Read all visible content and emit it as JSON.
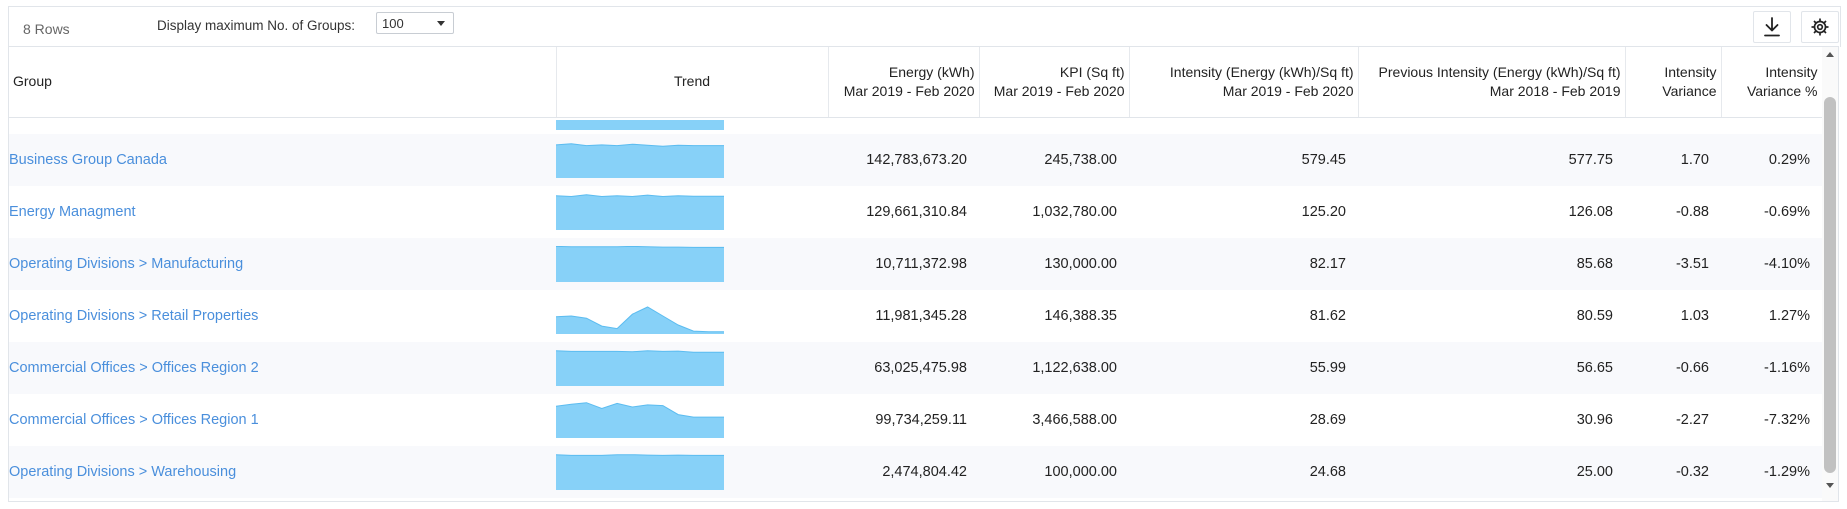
{
  "toolbar": {
    "rows_count": "8 Rows",
    "max_groups_label": "Display maximum No. of Groups:",
    "max_groups_value": "100",
    "download_icon": "download-icon",
    "settings_icon": "gear-icon"
  },
  "columns": {
    "group": "Group",
    "trend": "Trend",
    "energy": [
      "Energy (kWh)",
      "Mar 2019 - Feb 2020"
    ],
    "kpi": [
      "KPI (Sq ft)",
      "Mar 2019 - Feb 2020"
    ],
    "intensity": [
      "Intensity (Energy (kWh)/Sq ft)",
      "Mar 2019 - Feb 2020"
    ],
    "prev_intensity": [
      "Previous Intensity (Energy (kWh)/Sq ft)",
      "Mar 2018 - Feb 2019"
    ],
    "intensity_variance": [
      "Intensity",
      "Variance"
    ],
    "intensity_variance_pct": [
      "Intensity",
      "Variance %"
    ]
  },
  "rows": [
    {
      "group": "Business Group Canada",
      "energy": "142,783,673.20",
      "kpi": "245,738.00",
      "intensity": "579.45",
      "prev_intensity": "577.75",
      "variance": "1.70",
      "variance_pct": "0.29%",
      "trend": [
        0.92,
        0.95,
        0.9,
        0.92,
        0.9,
        0.94,
        0.91,
        0.88,
        0.91,
        0.9,
        0.9,
        0.9
      ]
    },
    {
      "group": "Energy Managment",
      "energy": "129,661,310.84",
      "kpi": "1,032,780.00",
      "intensity": "125.20",
      "prev_intensity": "126.08",
      "variance": "-0.88",
      "variance_pct": "-0.69%",
      "trend": [
        0.95,
        0.93,
        0.98,
        0.93,
        0.95,
        0.93,
        0.97,
        0.93,
        0.95,
        0.94,
        0.94,
        0.94
      ]
    },
    {
      "group": "Operating Divisions > Manufacturing",
      "energy": "10,711,372.98",
      "kpi": "130,000.00",
      "intensity": "82.17",
      "prev_intensity": "85.68",
      "variance": "-3.51",
      "variance_pct": "-4.10%",
      "trend": [
        0.99,
        0.98,
        0.98,
        0.98,
        0.98,
        0.99,
        0.98,
        0.97,
        0.97,
        0.96,
        0.96,
        0.96
      ]
    },
    {
      "group": "Operating Divisions > Retail Properties",
      "energy": "11,981,345.28",
      "kpi": "146,388.35",
      "intensity": "81.62",
      "prev_intensity": "80.59",
      "variance": "1.03",
      "variance_pct": "1.27%",
      "trend": [
        0.48,
        0.5,
        0.44,
        0.22,
        0.15,
        0.55,
        0.75,
        0.5,
        0.25,
        0.08,
        0.06,
        0.06
      ]
    },
    {
      "group": "Commercial Offices > Offices Region 2",
      "energy": "63,025,475.98",
      "kpi": "1,122,638.00",
      "intensity": "55.99",
      "prev_intensity": "56.65",
      "variance": "-0.66",
      "variance_pct": "-1.16%",
      "trend": [
        0.98,
        0.96,
        0.96,
        0.96,
        0.96,
        0.95,
        0.98,
        0.96,
        0.97,
        0.94,
        0.94,
        0.94
      ]
    },
    {
      "group": "Commercial Offices > Offices Region 1",
      "energy": "99,734,259.11",
      "kpi": "3,466,588.00",
      "intensity": "28.69",
      "prev_intensity": "30.96",
      "variance": "-2.27",
      "variance_pct": "-7.32%",
      "trend": [
        0.88,
        0.94,
        0.98,
        0.82,
        0.96,
        0.86,
        0.92,
        0.9,
        0.65,
        0.58,
        0.58,
        0.58
      ]
    },
    {
      "group": "Operating Divisions > Warehousing",
      "energy": "2,474,804.42",
      "kpi": "100,000.00",
      "intensity": "24.68",
      "prev_intensity": "25.00",
      "variance": "-0.32",
      "variance_pct": "-1.29%",
      "trend": [
        0.98,
        0.96,
        0.96,
        0.96,
        0.98,
        0.98,
        0.97,
        0.96,
        0.97,
        0.96,
        0.96,
        0.96
      ]
    }
  ],
  "colors": {
    "sparkline_fill": "#87d1f8",
    "sparkline_line": "#5bbcf0",
    "link": "#4a8fdc"
  }
}
